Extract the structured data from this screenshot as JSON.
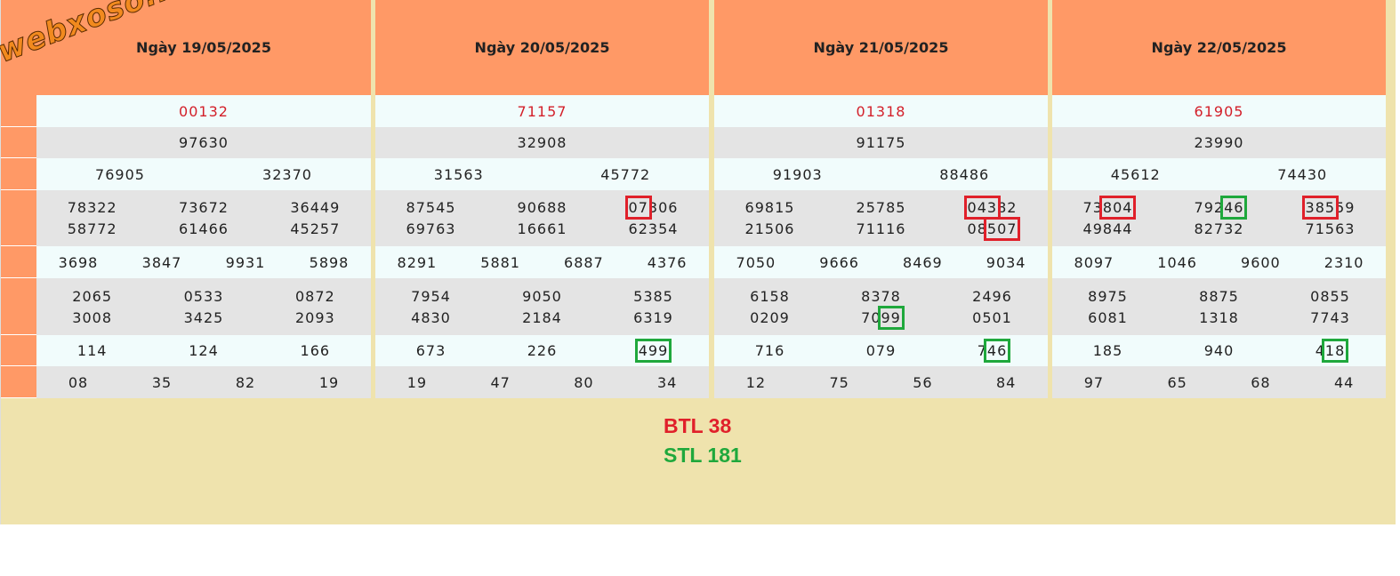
{
  "watermark": "webxoso.net",
  "days": [
    {
      "date": "Ngày 19/05/2025",
      "prizes": [
        [
          "00132"
        ],
        [
          "97630"
        ],
        [
          "76905",
          "32370"
        ],
        [
          "78322",
          "73672",
          "36449",
          "58772",
          "61466",
          "45257"
        ],
        [
          "3698",
          "3847",
          "9931",
          "5898"
        ],
        [
          "2065",
          "0533",
          "0872",
          "3008",
          "3425",
          "2093"
        ],
        [
          "114",
          "124",
          "166"
        ],
        [
          "08",
          "35",
          "82",
          "19"
        ]
      ]
    },
    {
      "date": "Ngày 20/05/2025",
      "prizes": [
        [
          "71157"
        ],
        [
          "32908"
        ],
        [
          "31563",
          "45772"
        ],
        [
          "87545",
          "90688",
          "07306",
          "69763",
          "16661",
          "62354"
        ],
        [
          "8291",
          "5881",
          "6887",
          "4376"
        ],
        [
          "7954",
          "9050",
          "5385",
          "4830",
          "2184",
          "6319"
        ],
        [
          "673",
          "226",
          "499"
        ],
        [
          "19",
          "47",
          "80",
          "34"
        ]
      ]
    },
    {
      "date": "Ngày 21/05/2025",
      "prizes": [
        [
          "01318"
        ],
        [
          "91175"
        ],
        [
          "91903",
          "88486"
        ],
        [
          "69815",
          "25785",
          "04382",
          "21506",
          "71116",
          "08507"
        ],
        [
          "7050",
          "9666",
          "8469",
          "9034"
        ],
        [
          "6158",
          "8378",
          "2496",
          "0209",
          "7099",
          "0501"
        ],
        [
          "716",
          "079",
          "746"
        ],
        [
          "12",
          "75",
          "56",
          "84"
        ]
      ]
    },
    {
      "date": "Ngày 22/05/2025",
      "prizes": [
        [
          "61905"
        ],
        [
          "23990"
        ],
        [
          "45612",
          "74430"
        ],
        [
          "73804",
          "79246",
          "38559",
          "49844",
          "82732",
          "71563"
        ],
        [
          "8097",
          "1046",
          "9600",
          "2310"
        ],
        [
          "8975",
          "8875",
          "0855",
          "6081",
          "1318",
          "7743"
        ],
        [
          "185",
          "940",
          "418"
        ],
        [
          "97",
          "65",
          "68",
          "44"
        ]
      ]
    }
  ],
  "summary": [
    "BTL 38",
    "STL 181"
  ]
}
